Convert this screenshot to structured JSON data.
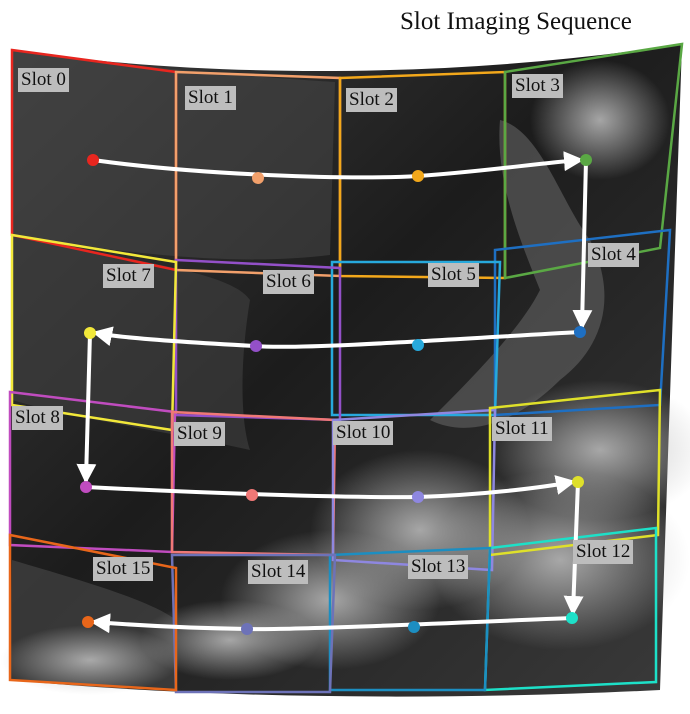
{
  "title": "Slot Imaging Sequence",
  "slots": [
    {
      "label": "Slot 0",
      "color": "#e8261f"
    },
    {
      "label": "Slot 1",
      "color": "#f2a06b"
    },
    {
      "label": "Slot 2",
      "color": "#f3a81b"
    },
    {
      "label": "Slot 3",
      "color": "#5aa844"
    },
    {
      "label": "Slot 4",
      "color": "#1e6fc2"
    },
    {
      "label": "Slot 5",
      "color": "#27a9dc"
    },
    {
      "label": "Slot 6",
      "color": "#9350c8"
    },
    {
      "label": "Slot 7",
      "color": "#f2e83a"
    },
    {
      "label": "Slot 8",
      "color": "#c04cbf"
    },
    {
      "label": "Slot 9",
      "color": "#f07876"
    },
    {
      "label": "Slot 10",
      "color": "#8e87e0"
    },
    {
      "label": "Slot 11",
      "color": "#dfe02a"
    },
    {
      "label": "Slot 12",
      "color": "#1de0c8"
    },
    {
      "label": "Slot 13",
      "color": "#1c8ec1"
    },
    {
      "label": "Slot 14",
      "color": "#6d72b8"
    },
    {
      "label": "Slot 15",
      "color": "#e8661a"
    }
  ],
  "colors": {
    "arrow": "#ffffff",
    "imagery_dark": "#2a2a2a",
    "label_bg": "#bdbdbd"
  }
}
